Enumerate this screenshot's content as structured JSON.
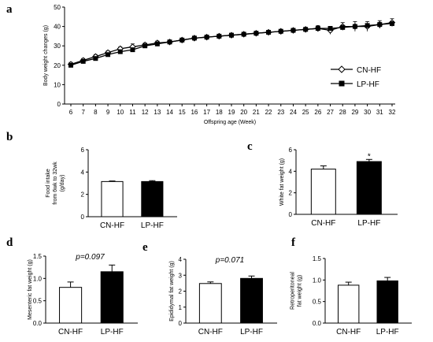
{
  "figure": {
    "panel_labels": [
      "a",
      "b",
      "c",
      "d",
      "e",
      "f"
    ]
  },
  "chart_data": [
    {
      "panel": "a",
      "type": "line",
      "xlabel": "Offspring age (Week)",
      "ylabel": "Body weight changes (g)",
      "x": [
        6,
        7,
        8,
        9,
        10,
        11,
        12,
        13,
        14,
        15,
        16,
        17,
        18,
        19,
        20,
        21,
        22,
        23,
        24,
        25,
        26,
        27,
        28,
        29,
        30,
        31,
        32
      ],
      "ylim": [
        0,
        50
      ],
      "yticks": [
        0,
        10,
        20,
        30,
        40,
        50
      ],
      "legend_position": "right",
      "series": [
        {
          "name": "CN-HF",
          "marker": "open-diamond",
          "values": [
            20.5,
            22.5,
            24.5,
            26.5,
            28.5,
            29.5,
            30.5,
            31.5,
            32.0,
            33.0,
            34.0,
            34.5,
            35.0,
            35.5,
            36.0,
            36.5,
            37.0,
            37.5,
            38.0,
            38.5,
            39.0,
            38.0,
            40.0,
            40.0,
            40.0,
            41.0,
            42.0
          ],
          "errors": [
            1.0,
            1.0,
            1.0,
            1.0,
            1.0,
            1.5,
            1.0,
            1.0,
            1.0,
            1.0,
            1.0,
            1.0,
            1.0,
            1.0,
            1.0,
            1.0,
            1.0,
            1.0,
            1.0,
            1.0,
            1.5,
            2.0,
            2.0,
            2.5,
            2.5,
            2.0,
            2.0
          ]
        },
        {
          "name": "LP-HF",
          "marker": "filled-square",
          "values": [
            20.0,
            22.0,
            23.5,
            25.5,
            27.0,
            28.0,
            30.0,
            31.0,
            32.0,
            33.0,
            34.0,
            34.5,
            35.0,
            35.5,
            36.0,
            36.5,
            37.0,
            37.5,
            38.0,
            38.5,
            39.0,
            39.0,
            39.5,
            40.0,
            40.5,
            41.0,
            41.5
          ],
          "errors": [
            0.5,
            0.5,
            0.8,
            0.8,
            0.8,
            0.8,
            0.8,
            0.8,
            0.8,
            0.8,
            0.8,
            0.8,
            0.8,
            0.8,
            0.8,
            0.8,
            0.8,
            0.8,
            0.8,
            0.8,
            0.8,
            1.0,
            1.0,
            1.0,
            1.0,
            1.0,
            1.0
          ]
        }
      ]
    },
    {
      "panel": "b",
      "type": "bar",
      "ylabel_lines": [
        "Food intake",
        "from 6wk to 32wk",
        "(g/day)"
      ],
      "categories": [
        "CN-HF",
        "LP-HF"
      ],
      "values": [
        3.15,
        3.15
      ],
      "errors": [
        0.05,
        0.08
      ],
      "ylim": [
        0,
        6
      ],
      "yticks": [
        0,
        2,
        4,
        6
      ],
      "annotation": ""
    },
    {
      "panel": "c",
      "type": "bar",
      "ylabel_lines": [
        "White fat weight (g)"
      ],
      "categories": [
        "CN-HF",
        "LP-HF"
      ],
      "values": [
        4.2,
        4.9
      ],
      "errors": [
        0.3,
        0.2
      ],
      "ylim": [
        0,
        6
      ],
      "yticks": [
        0,
        2,
        4,
        6
      ],
      "annotation": "*"
    },
    {
      "panel": "d",
      "type": "bar",
      "ylabel_lines": [
        "Mesenteric fat weight (g)"
      ],
      "categories": [
        "CN-HF",
        "LP-HF"
      ],
      "values": [
        0.8,
        1.15
      ],
      "errors": [
        0.12,
        0.15
      ],
      "ylim": [
        0,
        1.5
      ],
      "yticks": [
        0,
        0.5,
        1.0,
        1.5
      ],
      "tick_format": "0.0",
      "annotation": "p=0.097"
    },
    {
      "panel": "e",
      "type": "bar",
      "ylabel_lines": [
        "Epididymal fat weight (g)"
      ],
      "categories": [
        "CN-HF",
        "LP-HF"
      ],
      "values": [
        2.48,
        2.8
      ],
      "errors": [
        0.1,
        0.15
      ],
      "ylim": [
        0,
        4
      ],
      "yticks": [
        0,
        1,
        2,
        3,
        4
      ],
      "annotation": "p=0.071"
    },
    {
      "panel": "f",
      "type": "bar",
      "ylabel_lines": [
        "Retroperitoneal",
        "fat weight (g)"
      ],
      "categories": [
        "CN-HF",
        "LP-HF"
      ],
      "values": [
        0.88,
        0.98
      ],
      "errors": [
        0.07,
        0.08
      ],
      "ylim": [
        0,
        1.5
      ],
      "yticks": [
        0,
        0.5,
        1.0,
        1.5
      ],
      "tick_format": "0.0",
      "annotation": ""
    }
  ]
}
